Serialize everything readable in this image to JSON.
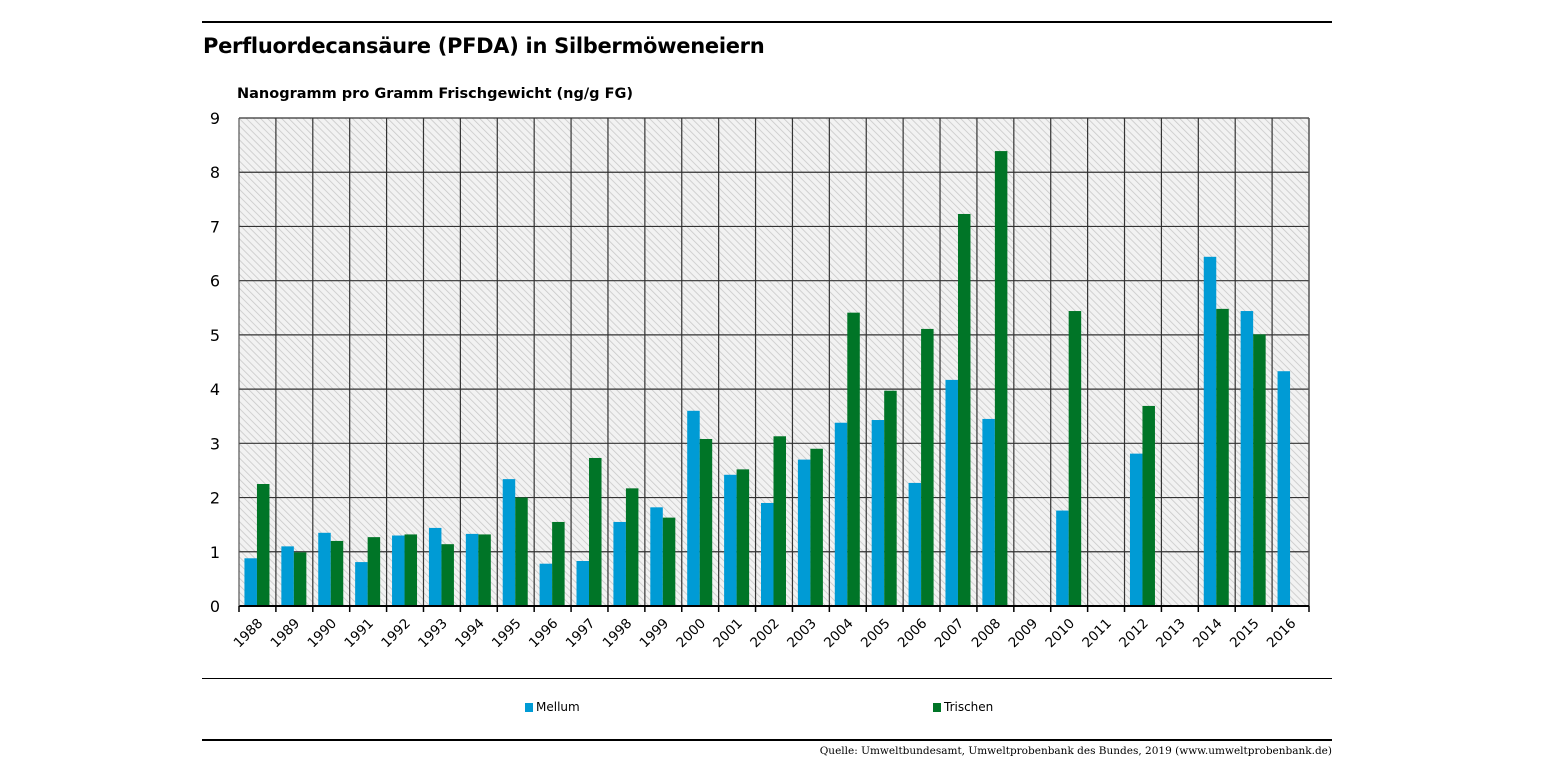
{
  "header": {
    "title": "Perfluordecansäure (PFDA) in Silbermöweneiern"
  },
  "footer": {
    "source": "Quelle: Umweltbundesamt, Umweltprobenbank des Bundes, 2019 (www.umweltprobenbank.de)"
  },
  "chart_data": {
    "type": "bar",
    "title": "Perfluordecansäure (PFDA) in Silbermöweneiern",
    "xlabel": "",
    "ylabel": "Nanogramm pro Gramm Frischgewicht (ng/g FG)",
    "ylim": [
      0,
      9
    ],
    "yticks": [
      "0",
      "1",
      "2",
      "3",
      "4",
      "5",
      "6",
      "7",
      "8",
      "9"
    ],
    "grid": true,
    "legend_position": "bottom",
    "categories": [
      "1988",
      "1989",
      "1990",
      "1991",
      "1992",
      "1993",
      "1994",
      "1995",
      "1996",
      "1997",
      "1998",
      "1999",
      "2000",
      "2001",
      "2002",
      "2003",
      "2004",
      "2005",
      "2006",
      "2007",
      "2008",
      "2009",
      "2010",
      "2011",
      "2012",
      "2013",
      "2014",
      "2015",
      "2016"
    ],
    "series": [
      {
        "name": "Mellum",
        "color": "#009bd5",
        "values": [
          0.88,
          1.1,
          1.35,
          0.81,
          1.3,
          1.44,
          1.33,
          2.34,
          0.78,
          0.83,
          1.55,
          1.82,
          3.6,
          2.42,
          1.9,
          2.7,
          3.38,
          3.43,
          2.27,
          4.17,
          3.45,
          null,
          1.76,
          null,
          2.81,
          null,
          6.44,
          5.44,
          4.33
        ]
      },
      {
        "name": "Trischen",
        "color": "#007527",
        "values": [
          2.25,
          0.99,
          1.2,
          1.27,
          1.32,
          1.14,
          1.32,
          2.0,
          1.55,
          2.73,
          2.17,
          1.63,
          3.08,
          2.52,
          3.13,
          2.9,
          5.41,
          3.97,
          5.11,
          7.23,
          8.39,
          null,
          5.44,
          null,
          3.69,
          null,
          5.48,
          5.01,
          null
        ]
      }
    ]
  }
}
